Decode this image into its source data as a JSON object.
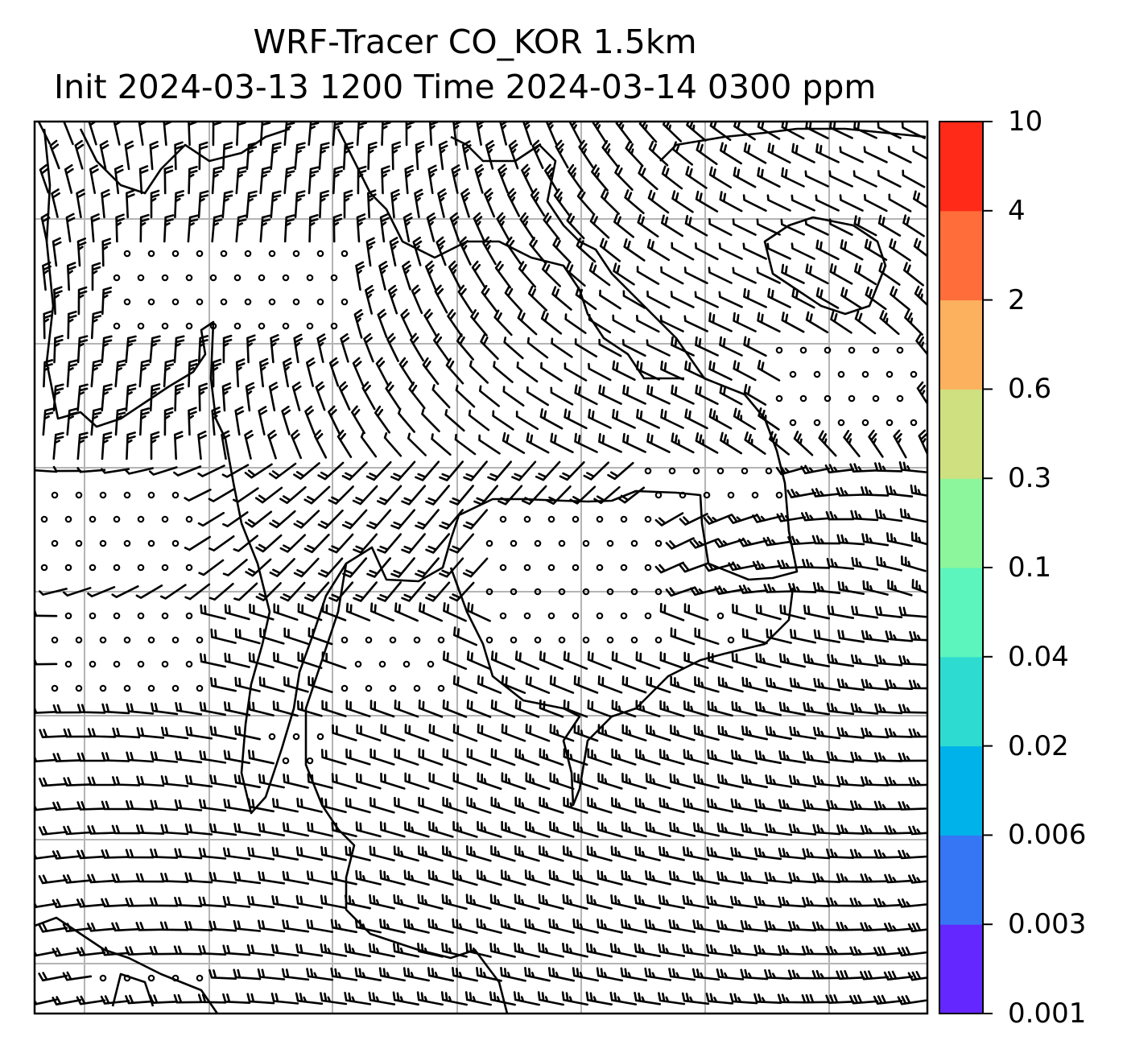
{
  "title_line1": "WRF-Tracer CO_KOR 1.5km",
  "title_line2": "Init 2024-03-13 1200 Time 2024-03-14 0300 ppm",
  "colorbar": {
    "ticks": [
      "0.001",
      "0.003",
      "0.006",
      "0.02",
      "0.04",
      "0.1",
      "0.3",
      "0.6",
      "2",
      "4",
      "10"
    ],
    "colors": [
      "#6427ff",
      "#3676f4",
      "#00b2ea",
      "#2edbd0",
      "#5cf5bd",
      "#8cf69c",
      "#cfe080",
      "#fcb15e",
      "#ff6d3a",
      "#ff2a18"
    ]
  },
  "map": {
    "grid": "on",
    "barb_color": "#000000",
    "coastline_color": "#000000",
    "gridline_color": "#b4b4b4"
  }
}
